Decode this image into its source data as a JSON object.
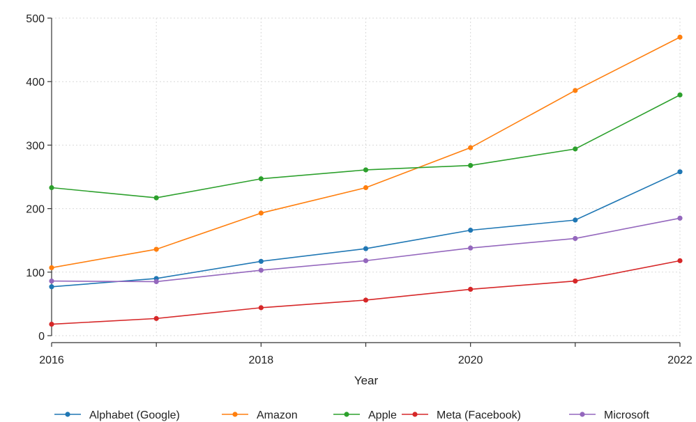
{
  "chart_data": {
    "type": "line",
    "xlabel": "Year",
    "ylabel": "",
    "x": [
      2016,
      2017,
      2018,
      2019,
      2020,
      2021,
      2022
    ],
    "xticks": [
      "2016",
      "2018",
      "2020",
      "2022"
    ],
    "yticks": [
      "0",
      "100",
      "200",
      "300",
      "400",
      "500"
    ],
    "xlim": [
      2016,
      2022
    ],
    "ylim": [
      0,
      500
    ],
    "grid": true,
    "legend_position": "bottom",
    "series": [
      {
        "name": "Alphabet (Google)",
        "color": "#1f77b4",
        "values": [
          77,
          90,
          117,
          137,
          166,
          182,
          258
        ]
      },
      {
        "name": "Amazon",
        "color": "#ff7f0e",
        "values": [
          107,
          136,
          193,
          233,
          296,
          386,
          470
        ]
      },
      {
        "name": "Apple",
        "color": "#2ca02c",
        "values": [
          233,
          217,
          247,
          261,
          268,
          294,
          379
        ]
      },
      {
        "name": "Meta (Facebook)",
        "color": "#d62728",
        "values": [
          18,
          27,
          44,
          56,
          73,
          86,
          118
        ]
      },
      {
        "name": "Microsoft",
        "color": "#9467bd",
        "values": [
          86,
          85,
          103,
          118,
          138,
          153,
          185
        ]
      }
    ]
  }
}
